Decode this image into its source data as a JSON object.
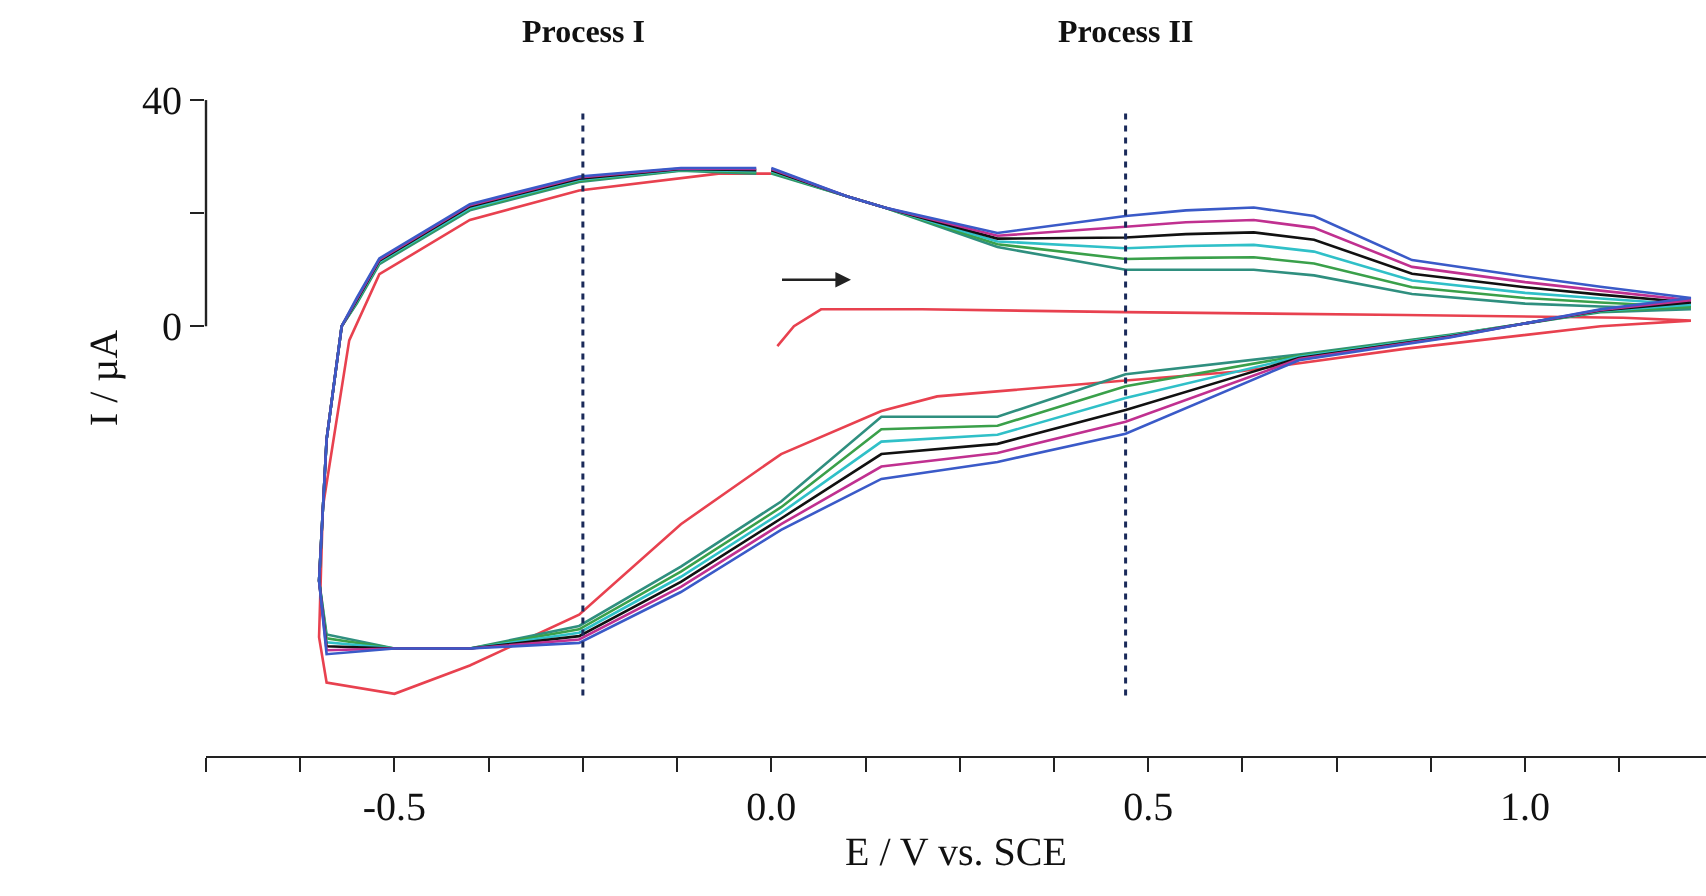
{
  "chart_data": {
    "type": "line",
    "xlabel": "E / V vs. SCE",
    "ylabel": "I / µA",
    "xlim": [
      -0.75,
      1.24
    ],
    "ylim": [
      -76,
      57.7
    ],
    "xticks": [
      {
        "value": -0.75,
        "label": null
      },
      {
        "value": -0.625,
        "label": null
      },
      -0.5,
      {
        "value": -0.375,
        "label": null
      },
      {
        "value": -0.25,
        "label": null
      },
      {
        "value": -0.125,
        "label": null
      },
      {
        "value": 0,
        "label": "0.0"
      },
      {
        "value": 0.125,
        "label": null
      },
      {
        "value": 0.25,
        "label": null
      },
      {
        "value": 0.375,
        "label": null
      },
      0.5,
      {
        "value": 0.625,
        "label": null
      },
      {
        "value": 0.75,
        "label": null
      },
      {
        "value": 0.875,
        "label": null
      },
      {
        "value": 1,
        "label": "1.0"
      },
      {
        "value": 1.125,
        "label": null
      }
    ],
    "yticks": [
      0,
      {
        "value": 20,
        "label": null
      },
      40
    ],
    "marker": "none",
    "line_style": "solid",
    "ref_lines": [
      {
        "axis": "x",
        "value": -0.25,
        "label": "Process I",
        "color": "#1a2a5a",
        "line_style": "dotted"
      },
      {
        "axis": "x",
        "value": 0.47,
        "label": "Process II",
        "color": "#1a2a5a",
        "line_style": "dotted"
      }
    ],
    "series": [
      {
        "color": "#e8414f",
        "x": [
          0.008,
          0.03,
          0.066,
          0.2,
          0.47,
          0.84,
          1.13,
          1.22,
          1.1,
          0.84,
          0.62,
          0.47,
          0.22,
          0.146,
          0.013,
          -0.12,
          -0.255,
          -0.4,
          -0.5,
          -0.59,
          -0.6,
          -0.595,
          -0.56,
          -0.52,
          -0.4,
          -0.255,
          -0.07,
          0.0
        ],
        "values": [
          -3.5,
          0,
          3,
          3,
          2.5,
          2,
          1.5,
          1,
          0,
          -4,
          -8,
          -9.6,
          -12.4,
          -15,
          -22.6,
          -35,
          -51,
          -60,
          -65,
          -63,
          -55,
          -32,
          -2.5,
          9.2,
          18.8,
          24,
          27,
          27
        ]
      },
      {
        "color": "#2f8f7f",
        "x": [
          0.0,
          0.1,
          0.15,
          0.3,
          0.47,
          0.55,
          0.64,
          0.72,
          0.85,
          1.0,
          1.1,
          1.22,
          1.1,
          0.9,
          0.7,
          0.47,
          0.3,
          0.146,
          0.013,
          -0.12,
          -0.255,
          -0.4,
          -0.5,
          -0.59,
          -0.6,
          -0.59,
          -0.57,
          -0.55,
          -0.52,
          -0.4,
          -0.255,
          -0.12,
          -0.02
        ],
        "values": [
          27,
          23,
          21,
          14,
          10,
          10,
          10,
          9,
          5.7,
          4,
          3.5,
          3,
          2.5,
          -1.5,
          -5,
          -8.5,
          -16,
          -16,
          -31,
          -42.5,
          -53,
          -57,
          -57,
          -54.5,
          -45,
          -20,
          0,
          4,
          11,
          20.5,
          25.5,
          27.5,
          27
        ]
      },
      {
        "color": "#3aa04a",
        "x": [
          0.0,
          0.1,
          0.15,
          0.3,
          0.47,
          0.55,
          0.64,
          0.72,
          0.85,
          1.0,
          1.1,
          1.22,
          1.1,
          0.9,
          0.7,
          0.47,
          0.3,
          0.146,
          0.013,
          -0.12,
          -0.255,
          -0.4,
          -0.5,
          -0.59,
          -0.6,
          -0.59,
          -0.57,
          -0.55,
          -0.52,
          -0.4,
          -0.255,
          -0.12,
          -0.02
        ],
        "values": [
          27.2,
          23,
          21,
          14.5,
          11.9,
          12.1,
          12.2,
          11.1,
          6.9,
          5,
          4.2,
          3.4,
          2.6,
          -1.6,
          -5.2,
          -10.6,
          -17.6,
          -18.2,
          -32,
          -43.4,
          -53.6,
          -57,
          -57,
          -55.2,
          -45,
          -20,
          0,
          4.2,
          11.2,
          20.7,
          25.7,
          27.6,
          27.2
        ]
      },
      {
        "color": "#30c0c8",
        "x": [
          0.0,
          0.1,
          0.15,
          0.3,
          0.47,
          0.55,
          0.64,
          0.72,
          0.85,
          1.0,
          1.1,
          1.22,
          1.1,
          0.9,
          0.7,
          0.47,
          0.3,
          0.146,
          0.013,
          -0.12,
          -0.255,
          -0.4,
          -0.5,
          -0.59,
          -0.6,
          -0.59,
          -0.57,
          -0.55,
          -0.52,
          -0.4,
          -0.255,
          -0.12,
          -0.02
        ],
        "values": [
          27.4,
          23,
          21,
          15,
          13.8,
          14.2,
          14.4,
          13.2,
          8.1,
          5.9,
          4.9,
          3.8,
          2.7,
          -1.7,
          -5.4,
          -12.7,
          -19.2,
          -20.4,
          -33,
          -44.3,
          -54.2,
          -57,
          -57,
          -55.9,
          -45,
          -20,
          0,
          4.4,
          11.4,
          20.9,
          25.9,
          27.7,
          27.4
        ]
      },
      {
        "color": "#111111",
        "x": [
          0.0,
          0.1,
          0.15,
          0.3,
          0.47,
          0.55,
          0.64,
          0.72,
          0.85,
          1.0,
          1.1,
          1.22,
          1.1,
          0.9,
          0.7,
          0.47,
          0.3,
          0.146,
          0.013,
          -0.12,
          -0.255,
          -0.4,
          -0.5,
          -0.59,
          -0.6,
          -0.59,
          -0.57,
          -0.55,
          -0.52,
          -0.4,
          -0.255,
          -0.12,
          -0.02
        ],
        "values": [
          27.6,
          23,
          21,
          15.5,
          15.7,
          16.3,
          16.6,
          15.3,
          9.3,
          6.9,
          5.6,
          4.2,
          2.8,
          -1.8,
          -5.6,
          -14.8,
          -20.8,
          -22.6,
          -34,
          -45.2,
          -54.8,
          -57,
          -57,
          -56.6,
          -45,
          -20,
          0,
          4.6,
          11.6,
          21.2,
          26.1,
          27.8,
          27.6
        ]
      },
      {
        "color": "#c03090",
        "x": [
          0.0,
          0.1,
          0.15,
          0.3,
          0.47,
          0.55,
          0.64,
          0.72,
          0.85,
          1.0,
          1.1,
          1.22,
          1.1,
          0.9,
          0.7,
          0.47,
          0.3,
          0.146,
          0.013,
          -0.12,
          -0.255,
          -0.4,
          -0.5,
          -0.59,
          -0.6,
          -0.59,
          -0.57,
          -0.55,
          -0.52,
          -0.4,
          -0.255,
          -0.12,
          -0.02
        ],
        "values": [
          27.8,
          23,
          21,
          16,
          17.6,
          18.4,
          18.8,
          17.4,
          10.5,
          7.8,
          6.3,
          4.6,
          2.9,
          -1.9,
          -5.8,
          -16.9,
          -22.4,
          -24.8,
          -35,
          -46.1,
          -55.4,
          -57,
          -57,
          -57.3,
          -45,
          -20,
          0,
          4.8,
          11.8,
          21.4,
          26.3,
          27.9,
          27.8
        ]
      },
      {
        "color": "#3a5ac8",
        "x": [
          0.0,
          0.1,
          0.15,
          0.3,
          0.47,
          0.55,
          0.64,
          0.72,
          0.85,
          1.0,
          1.1,
          1.22,
          1.1,
          0.9,
          0.7,
          0.47,
          0.3,
          0.146,
          0.013,
          -0.12,
          -0.255,
          -0.4,
          -0.5,
          -0.59,
          -0.6,
          -0.59,
          -0.57,
          -0.55,
          -0.52,
          -0.4,
          -0.255,
          -0.12,
          -0.02
        ],
        "values": [
          28,
          23,
          21,
          16.5,
          19.5,
          20.5,
          21,
          19.5,
          11.7,
          8.8,
          7,
          5,
          3,
          -2,
          -6,
          -19,
          -24,
          -27,
          -36,
          -47,
          -56,
          -57,
          -57,
          -58,
          -45,
          -20,
          0,
          5,
          12,
          21.6,
          26.5,
          28,
          28
        ]
      }
    ]
  }
}
